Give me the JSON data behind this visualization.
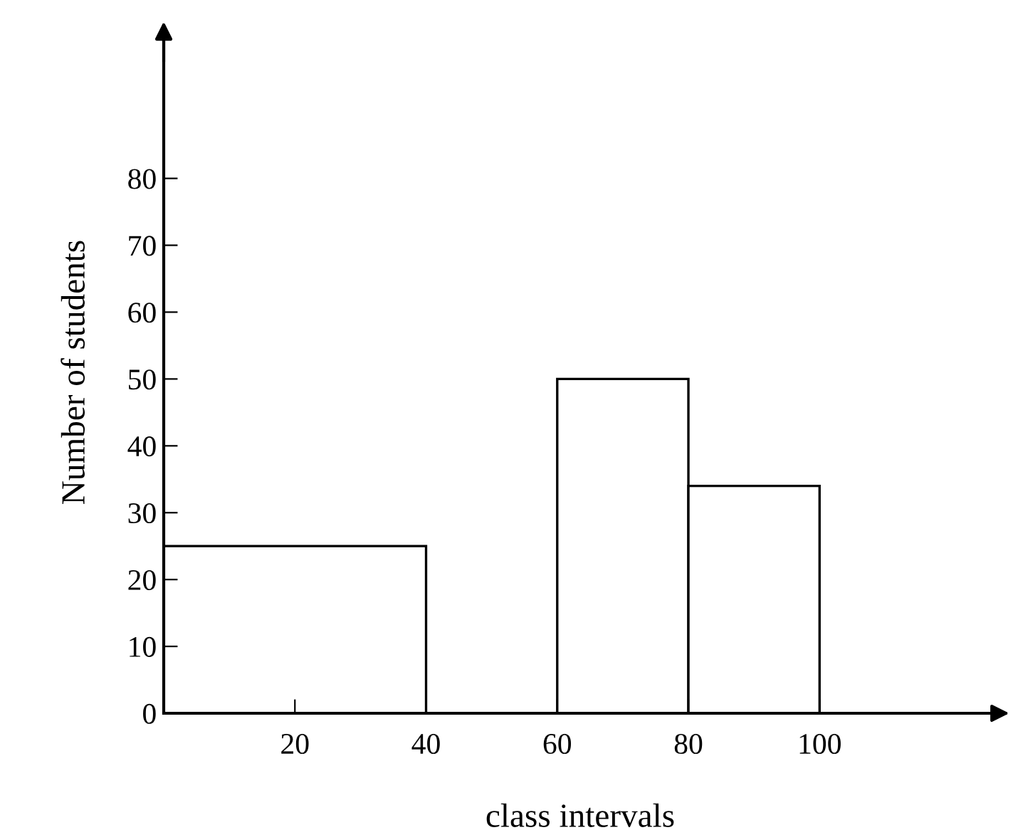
{
  "chart_data": {
    "type": "histogram",
    "xlabel": "class intervals",
    "ylabel": "Number of students",
    "bins": [
      0,
      40,
      60,
      80,
      100
    ],
    "values": [
      25,
      0,
      50,
      34
    ],
    "color": "#ffffff",
    "xlim": [
      0,
      127
    ],
    "ylim": [
      0,
      102
    ],
    "xticks": [
      20,
      40,
      60,
      80,
      100
    ],
    "yticks": [
      0,
      10,
      20,
      30,
      40,
      50,
      60,
      70,
      80
    ],
    "grid": false
  }
}
